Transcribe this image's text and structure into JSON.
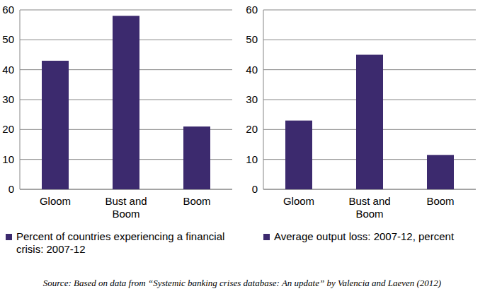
{
  "chart_data": [
    {
      "type": "bar",
      "categories": [
        "Gloom",
        "Bust and Boom",
        "Boom"
      ],
      "series": [
        {
          "name": "Percent of countries experiencing a financial crisis: 2007-12",
          "color": "#3c2a6e",
          "values": [
            43,
            58,
            21
          ]
        }
      ],
      "ylim": [
        0,
        60
      ],
      "yticks": [
        0,
        10,
        20,
        30,
        40,
        50,
        60
      ],
      "grid": true,
      "legend": "bottom"
    },
    {
      "type": "bar",
      "categories": [
        "Gloom",
        "Bust and Boom",
        "Boom"
      ],
      "series": [
        {
          "name": "Average output loss: 2007-12, percent",
          "color": "#3c2a6e",
          "values": [
            23,
            45,
            11.5
          ]
        }
      ],
      "ylim": [
        0,
        60
      ],
      "yticks": [
        0,
        10,
        20,
        30,
        40,
        50,
        60
      ],
      "grid": true,
      "legend": "bottom"
    }
  ],
  "source": "Source: Based on data from “Systemic banking crises database: An update” by Valencia and Laeven (2012)"
}
